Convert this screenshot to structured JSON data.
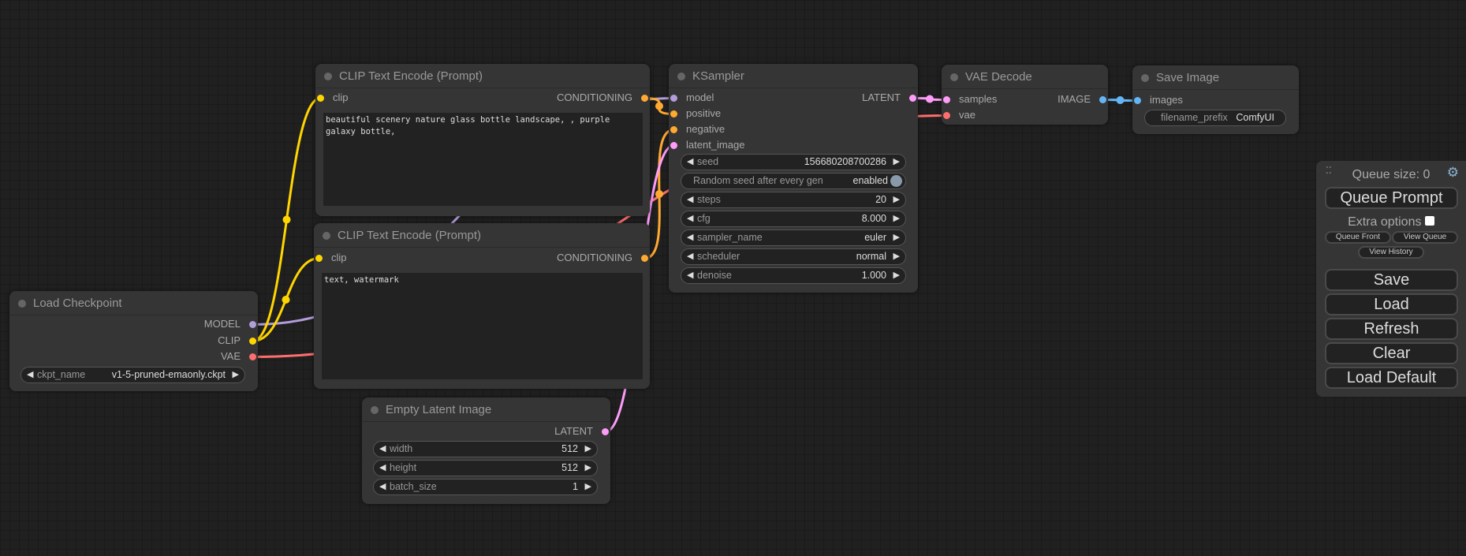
{
  "colors": {
    "MODEL": "#b39ddb",
    "CLIP": "#ffd500",
    "VAE": "#ff6e6e",
    "CONDITIONING": "#ffa931",
    "LATENT": "#ff9cf9",
    "IMAGE": "#64b5f6"
  },
  "nodes": {
    "clip_pos": {
      "title": "CLIP Text Encode (Prompt)",
      "in_clip": "clip",
      "out": "CONDITIONING",
      "text": "beautiful scenery nature glass bottle landscape, , purple galaxy bottle,"
    },
    "clip_neg": {
      "title": "CLIP Text Encode (Prompt)",
      "in_clip": "clip",
      "out": "CONDITIONING",
      "text": "text, watermark"
    },
    "checkpoint": {
      "title": "Load Checkpoint",
      "out_model": "MODEL",
      "out_clip": "CLIP",
      "out_vae": "VAE",
      "ckpt_label": "ckpt_name",
      "ckpt_value": "v1-5-pruned-emaonly.ckpt"
    },
    "latent": {
      "title": "Empty Latent Image",
      "out": "LATENT",
      "widgets": [
        {
          "label": "width",
          "value": "512"
        },
        {
          "label": "height",
          "value": "512"
        },
        {
          "label": "batch_size",
          "value": "1"
        }
      ]
    },
    "ksampler": {
      "title": "KSampler",
      "inputs": [
        "model",
        "positive",
        "negative",
        "latent_image"
      ],
      "out": "LATENT",
      "seed": {
        "label": "seed",
        "value": "156680208700286"
      },
      "random": {
        "label": "Random seed after every gen",
        "value": "enabled"
      },
      "widgets": [
        {
          "label": "steps",
          "value": "20"
        },
        {
          "label": "cfg",
          "value": "8.000"
        },
        {
          "label": "sampler_name",
          "value": "euler"
        },
        {
          "label": "scheduler",
          "value": "normal"
        },
        {
          "label": "denoise",
          "value": "1.000"
        }
      ]
    },
    "vae_decode": {
      "title": "VAE Decode",
      "in_samples": "samples",
      "in_vae": "vae",
      "out": "IMAGE"
    },
    "save": {
      "title": "Save Image",
      "in_images": "images",
      "prefix_label": "filename_prefix",
      "prefix_value": "ComfyUI"
    }
  },
  "links": [
    {
      "from": "ck-model",
      "to": "ks-model",
      "type": "MODEL"
    },
    {
      "from": "ck-clip",
      "to": "cp-clip",
      "type": "CLIP"
    },
    {
      "from": "ck-clip",
      "to": "cn-clip",
      "type": "CLIP"
    },
    {
      "from": "ck-vae",
      "to": "vd-vae",
      "type": "VAE"
    },
    {
      "from": "cp-out",
      "to": "ks-positive",
      "type": "CONDITIONING"
    },
    {
      "from": "cn-out",
      "to": "ks-negative",
      "type": "CONDITIONING"
    },
    {
      "from": "el-out",
      "to": "ks-latent",
      "type": "LATENT"
    },
    {
      "from": "ks-out",
      "to": "vd-samples",
      "type": "LATENT"
    },
    {
      "from": "vd-out",
      "to": "sv-images",
      "type": "IMAGE"
    }
  ],
  "panel": {
    "queue_size": "Queue size: 0",
    "queue_prompt": "Queue Prompt",
    "extra_options": "Extra options",
    "queue_front": "Queue Front",
    "view_queue": "View Queue",
    "view_history": "View History",
    "save": "Save",
    "load": "Load",
    "refresh": "Refresh",
    "clear": "Clear",
    "load_default": "Load Default"
  }
}
